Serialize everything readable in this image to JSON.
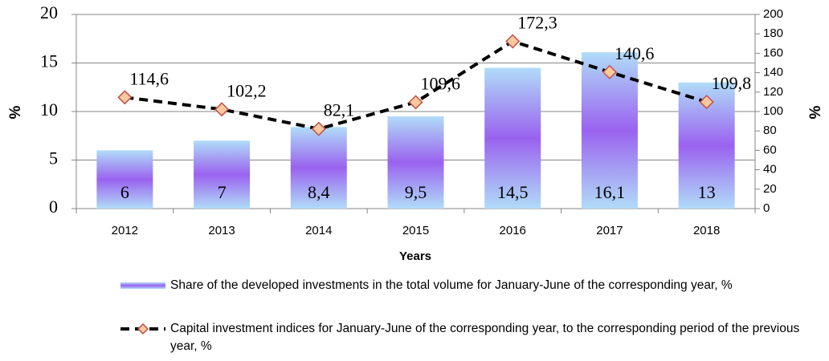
{
  "chart_data": {
    "type": "bar",
    "categories": [
      "2012",
      "2013",
      "2014",
      "2015",
      "2016",
      "2017",
      "2018"
    ],
    "xlabel": "Years",
    "ylabel": "%",
    "y2label": "%",
    "ylim": [
      0,
      20
    ],
    "yticks": [
      0,
      5,
      10,
      15,
      20
    ],
    "y2lim": [
      0,
      200
    ],
    "y2ticks": [
      0,
      20,
      40,
      60,
      80,
      100,
      120,
      140,
      160,
      180,
      200
    ],
    "grid": true,
    "legend": "bottom",
    "series": [
      {
        "name": "Share of the developed investments in the total volume for January-June of the corresponding year, %",
        "type": "bar",
        "color": "#9a62ef",
        "values": [
          6,
          7,
          8.4,
          9.5,
          14.5,
          16.1,
          13
        ],
        "value_labels": [
          "6",
          "7",
          "8,4",
          "9,5",
          "14,5",
          "16,1",
          "13"
        ]
      },
      {
        "name": "Capital investment indices for January-June of the corresponding year, to the corresponding period of the previous year, %",
        "type": "line",
        "axis": "y2",
        "color": "#000000",
        "marker_color": "#f8c99c",
        "marker_edge": "#c0504d",
        "values": [
          114.6,
          102.2,
          82.1,
          109.6,
          172.3,
          140.6,
          109.8
        ],
        "value_labels": [
          "114,6",
          "102,2",
          "82,1",
          "109,6",
          "172,3",
          "140,6",
          "109,8"
        ]
      }
    ]
  }
}
